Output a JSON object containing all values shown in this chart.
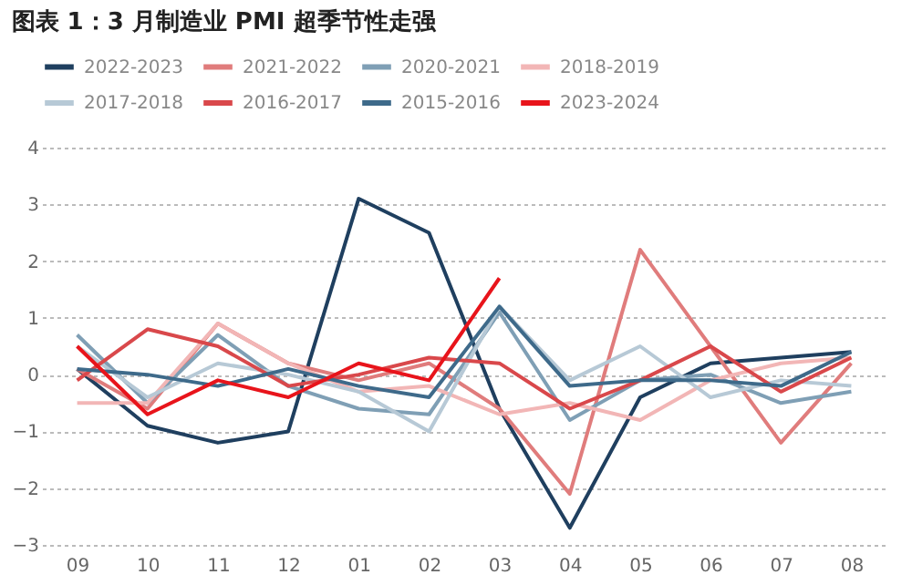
{
  "chart_data": {
    "type": "line",
    "title": "图表 1：3 月制造业 PMI 超季节性走强",
    "categories": [
      "09",
      "10",
      "11",
      "12",
      "01",
      "02",
      "03",
      "04",
      "05",
      "06",
      "07",
      "08"
    ],
    "series": [
      {
        "name": "2022-2023",
        "color": "#1f3f5f",
        "values": [
          0.1,
          -0.9,
          -1.2,
          -1.0,
          3.1,
          2.5,
          -0.6,
          -2.7,
          -0.4,
          0.2,
          0.3,
          0.4
        ]
      },
      {
        "name": "2021-2022",
        "color": "#e07c7c",
        "values": [
          0.1,
          -0.6,
          0.9,
          0.2,
          -0.1,
          0.2,
          -0.6,
          -2.1,
          2.2,
          0.5,
          -1.2,
          0.2
        ]
      },
      {
        "name": "2020-2021",
        "color": "#7f9fb5",
        "values": [
          0.7,
          -0.5,
          0.7,
          -0.2,
          -0.6,
          -0.7,
          1.1,
          -0.8,
          -0.1,
          0.0,
          -0.5,
          -0.3
        ]
      },
      {
        "name": "2018-2019",
        "color": "#f2b6b6",
        "values": [
          -0.5,
          -0.5,
          0.9,
          0.2,
          -0.3,
          -0.2,
          -0.7,
          -0.5,
          -0.8,
          -0.1,
          0.2,
          0.3
        ]
      },
      {
        "name": "2017-2018",
        "color": "#b7c9d6",
        "values": [
          0.5,
          -0.4,
          0.2,
          0.0,
          -0.3,
          -1.0,
          1.2,
          -0.1,
          0.5,
          -0.4,
          -0.1,
          -0.2
        ]
      },
      {
        "name": "2016-2017",
        "color": "#d9484b",
        "values": [
          -0.1,
          0.8,
          0.5,
          -0.2,
          0.0,
          0.3,
          0.2,
          -0.6,
          -0.1,
          0.5,
          -0.3,
          0.3
        ]
      },
      {
        "name": "2015-2016",
        "color": "#3e6a8a",
        "values": [
          0.1,
          0.0,
          -0.2,
          0.1,
          -0.2,
          -0.4,
          1.2,
          -0.2,
          -0.1,
          -0.1,
          -0.2,
          0.4
        ]
      },
      {
        "name": "2023-2024",
        "color": "#e8141b",
        "values": [
          0.5,
          -0.7,
          -0.1,
          -0.4,
          0.2,
          -0.1,
          1.7,
          null,
          null,
          null,
          null,
          null
        ]
      }
    ],
    "ylim": [
      -3,
      4
    ],
    "yticks": [
      -3,
      -2,
      -1,
      0,
      1,
      2,
      3,
      4
    ],
    "grid": "y",
    "legend": "top",
    "line_style": "solid"
  }
}
